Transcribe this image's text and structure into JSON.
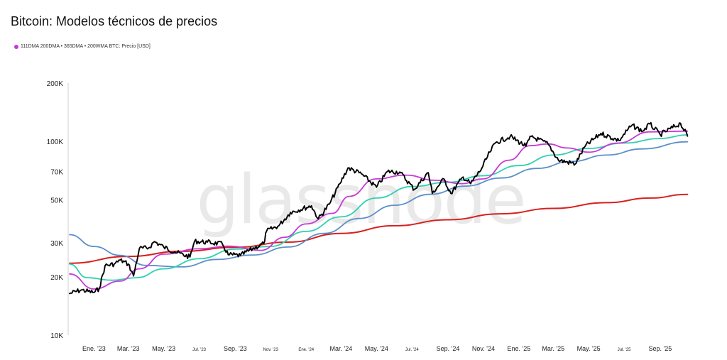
{
  "title": "Bitcoin: Modelos técnicos de precios",
  "legend_text": "111DMA 200DMA • 365DMA • 200WMA BTC: Precio [USD]",
  "watermark": "glassnode",
  "colors": {
    "price": "#000000",
    "dma111": "#c63ad6",
    "dma200": "#2fcfae",
    "dma365": "#5b8fc9",
    "wma200": "#d81f1f"
  },
  "chart_data": {
    "type": "line",
    "title": "Bitcoin: Modelos técnicos de precios",
    "y_scale": "log",
    "ylim": [
      10000,
      200000
    ],
    "xlim": [
      "2022-11-20",
      "2025-10-20"
    ],
    "y_ticks": [
      {
        "value": 10000,
        "label": "10K"
      },
      {
        "value": 20000,
        "label": "20K"
      },
      {
        "value": 30000,
        "label": "30K"
      },
      {
        "value": 50000,
        "label": "50K"
      },
      {
        "value": 70000,
        "label": "70K"
      },
      {
        "value": 100000,
        "label": "100K"
      },
      {
        "value": 200000,
        "label": "200K"
      }
    ],
    "x_ticks": [
      {
        "date": "2023-01-01",
        "label": "Ene. '23",
        "small": false
      },
      {
        "date": "2023-03-01",
        "label": "Mar. '23",
        "small": false
      },
      {
        "date": "2023-05-01",
        "label": "May. '23",
        "small": false
      },
      {
        "date": "2023-07-01",
        "label": "Jul. '23",
        "small": true
      },
      {
        "date": "2023-09-01",
        "label": "Sep. '23",
        "small": false
      },
      {
        "date": "2023-11-01",
        "label": "Nov. '23",
        "small": true
      },
      {
        "date": "2024-01-01",
        "label": "Ene. '24",
        "small": true
      },
      {
        "date": "2024-03-01",
        "label": "Mar. '24",
        "small": false
      },
      {
        "date": "2024-05-01",
        "label": "May. '24",
        "small": false
      },
      {
        "date": "2024-07-01",
        "label": "Jul. '24",
        "small": true
      },
      {
        "date": "2024-09-01",
        "label": "Sep. '24",
        "small": false
      },
      {
        "date": "2024-11-01",
        "label": "Nov. '24",
        "small": false
      },
      {
        "date": "2025-01-01",
        "label": "Ene. '25",
        "small": false
      },
      {
        "date": "2025-03-01",
        "label": "Mar. '25",
        "small": false
      },
      {
        "date": "2025-05-01",
        "label": "May. '25",
        "small": false
      },
      {
        "date": "2025-07-01",
        "label": "Jul. '25",
        "small": true
      },
      {
        "date": "2025-09-01",
        "label": "Sep. '25",
        "small": false
      }
    ],
    "series": [
      {
        "key": "price",
        "values": [
          [
            "2022-11-20",
            16400
          ],
          [
            "2022-12-10",
            17100
          ],
          [
            "2023-01-01",
            16600
          ],
          [
            "2023-01-10",
            17400
          ],
          [
            "2023-01-20",
            22800
          ],
          [
            "2023-02-05",
            23300
          ],
          [
            "2023-02-15",
            24400
          ],
          [
            "2023-03-01",
            23300
          ],
          [
            "2023-03-10",
            20200
          ],
          [
            "2023-03-20",
            28000
          ],
          [
            "2023-04-05",
            28200
          ],
          [
            "2023-04-15",
            30400
          ],
          [
            "2023-05-01",
            28500
          ],
          [
            "2023-05-20",
            26900
          ],
          [
            "2023-06-15",
            25300
          ],
          [
            "2023-06-23",
            30500
          ],
          [
            "2023-07-15",
            30200
          ],
          [
            "2023-08-10",
            29500
          ],
          [
            "2023-08-20",
            26000
          ],
          [
            "2023-09-10",
            25800
          ],
          [
            "2023-10-01",
            27900
          ],
          [
            "2023-10-20",
            29700
          ],
          [
            "2023-10-25",
            34500
          ],
          [
            "2023-11-15",
            36700
          ],
          [
            "2023-12-05",
            43000
          ],
          [
            "2024-01-10",
            46500
          ],
          [
            "2024-01-22",
            39800
          ],
          [
            "2024-02-10",
            47500
          ],
          [
            "2024-02-28",
            60500
          ],
          [
            "2024-03-13",
            73000
          ],
          [
            "2024-04-05",
            68000
          ],
          [
            "2024-05-01",
            58000
          ],
          [
            "2024-05-20",
            70000
          ],
          [
            "2024-06-10",
            69500
          ],
          [
            "2024-07-05",
            56500
          ],
          [
            "2024-07-29",
            69000
          ],
          [
            "2024-08-05",
            54000
          ],
          [
            "2024-08-25",
            64000
          ],
          [
            "2024-09-06",
            53900
          ],
          [
            "2024-09-27",
            65500
          ],
          [
            "2024-10-10",
            60500
          ],
          [
            "2024-10-29",
            72500
          ],
          [
            "2024-11-12",
            88000
          ],
          [
            "2024-11-22",
            98500
          ],
          [
            "2024-12-17",
            106000
          ],
          [
            "2025-01-13",
            94500
          ],
          [
            "2025-01-22",
            106000
          ],
          [
            "2025-02-20",
            97000
          ],
          [
            "2025-03-10",
            80000
          ],
          [
            "2025-04-08",
            76500
          ],
          [
            "2025-04-25",
            94500
          ],
          [
            "2025-05-22",
            110000
          ],
          [
            "2025-06-22",
            101000
          ],
          [
            "2025-07-14",
            121000
          ],
          [
            "2025-08-02",
            113000
          ],
          [
            "2025-08-14",
            123000
          ],
          [
            "2025-09-01",
            108500
          ],
          [
            "2025-10-06",
            124000
          ],
          [
            "2025-10-18",
            106500
          ]
        ]
      },
      {
        "key": "dma111",
        "values": [
          [
            "2022-11-20",
            20700
          ],
          [
            "2023-01-01",
            17300
          ],
          [
            "2023-02-15",
            19000
          ],
          [
            "2023-03-20",
            22000
          ],
          [
            "2023-05-01",
            26200
          ],
          [
            "2023-07-01",
            27900
          ],
          [
            "2023-08-20",
            28800
          ],
          [
            "2023-10-15",
            27400
          ],
          [
            "2023-11-25",
            32000
          ],
          [
            "2024-01-01",
            37500
          ],
          [
            "2024-02-15",
            42500
          ],
          [
            "2024-03-15",
            52000
          ],
          [
            "2024-04-30",
            64000
          ],
          [
            "2024-06-20",
            67000
          ],
          [
            "2024-08-10",
            63000
          ],
          [
            "2024-09-25",
            60500
          ],
          [
            "2024-10-31",
            64000
          ],
          [
            "2024-12-15",
            80000
          ],
          [
            "2025-01-20",
            95000
          ],
          [
            "2025-02-20",
            97000
          ],
          [
            "2025-03-25",
            92500
          ],
          [
            "2025-05-01",
            88000
          ],
          [
            "2025-06-20",
            98000
          ],
          [
            "2025-08-15",
            112000
          ],
          [
            "2025-10-18",
            113000
          ]
        ]
      },
      {
        "key": "dma200",
        "values": [
          [
            "2022-11-20",
            23300
          ],
          [
            "2022-12-20",
            19800
          ],
          [
            "2023-02-01",
            19200
          ],
          [
            "2023-03-15",
            19800
          ],
          [
            "2023-05-01",
            22000
          ],
          [
            "2023-07-01",
            24800
          ],
          [
            "2023-09-01",
            27800
          ],
          [
            "2023-10-31",
            28700
          ],
          [
            "2024-01-01",
            34300
          ],
          [
            "2024-03-01",
            40800
          ],
          [
            "2024-05-01",
            51000
          ],
          [
            "2024-07-01",
            58500
          ],
          [
            "2024-09-01",
            61500
          ],
          [
            "2024-11-01",
            66500
          ],
          [
            "2025-01-01",
            75000
          ],
          [
            "2025-03-01",
            85000
          ],
          [
            "2025-05-01",
            92000
          ],
          [
            "2025-07-01",
            98000
          ],
          [
            "2025-09-01",
            103500
          ],
          [
            "2025-10-18",
            108000
          ]
        ]
      },
      {
        "key": "dma365",
        "values": [
          [
            "2022-11-20",
            33000
          ],
          [
            "2023-01-01",
            28700
          ],
          [
            "2023-02-15",
            25800
          ],
          [
            "2023-04-01",
            22900
          ],
          [
            "2023-06-01",
            22500
          ],
          [
            "2023-08-01",
            24600
          ],
          [
            "2023-10-01",
            25900
          ],
          [
            "2023-12-01",
            28500
          ],
          [
            "2024-02-01",
            33500
          ],
          [
            "2024-04-01",
            40000
          ],
          [
            "2024-06-01",
            46800
          ],
          [
            "2024-08-01",
            53300
          ],
          [
            "2024-10-01",
            58800
          ],
          [
            "2024-12-01",
            64700
          ],
          [
            "2025-02-01",
            72500
          ],
          [
            "2025-04-01",
            78800
          ],
          [
            "2025-06-01",
            85000
          ],
          [
            "2025-08-01",
            91500
          ],
          [
            "2025-10-18",
            99500
          ]
        ]
      },
      {
        "key": "wma200",
        "values": [
          [
            "2022-11-20",
            23500
          ],
          [
            "2023-03-01",
            25500
          ],
          [
            "2023-06-01",
            27100
          ],
          [
            "2023-09-01",
            28400
          ],
          [
            "2023-12-01",
            30200
          ],
          [
            "2024-03-01",
            33500
          ],
          [
            "2024-06-01",
            36700
          ],
          [
            "2024-09-01",
            39400
          ],
          [
            "2024-12-01",
            42300
          ],
          [
            "2025-03-01",
            45100
          ],
          [
            "2025-06-01",
            48300
          ],
          [
            "2025-08-15",
            51000
          ],
          [
            "2025-10-18",
            53300
          ]
        ]
      }
    ]
  }
}
